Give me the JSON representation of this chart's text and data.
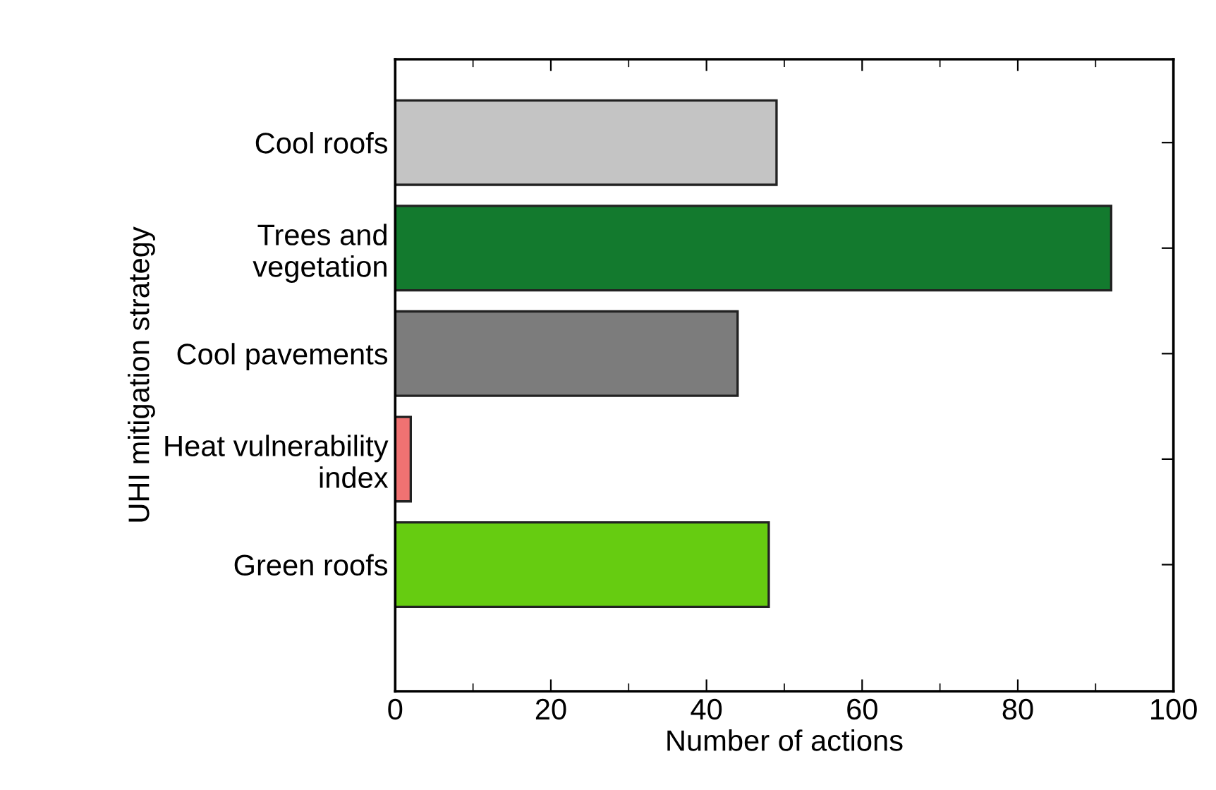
{
  "chart_data": {
    "type": "bar",
    "orientation": "horizontal",
    "xlabel": "Number of actions",
    "ylabel": "UHI mitigation strategy",
    "categories": [
      "Cool roofs",
      "Trees and\nvegetation",
      "Cool pavements",
      "Heat vulnerability\nindex",
      "Green roofs"
    ],
    "values": [
      49,
      92,
      44,
      2,
      48
    ],
    "colors": [
      "#c4c4c4",
      "#137a2e",
      "#7c7c7c",
      "#f07272",
      "#66cc11"
    ],
    "xlim": [
      0,
      100
    ],
    "xticks": [
      0,
      20,
      40,
      60,
      80,
      100
    ],
    "grid": false,
    "legend": false
  }
}
